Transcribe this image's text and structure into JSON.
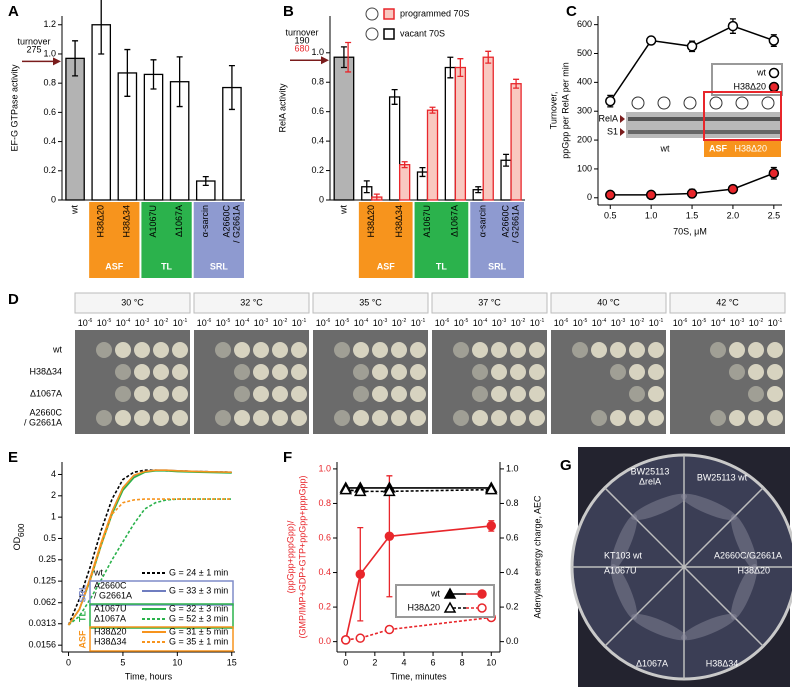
{
  "chart_data": [
    {
      "panel": "A",
      "type": "bar",
      "y_label": "EF-G GTPase activity",
      "ylim": [
        0,
        1.26
      ],
      "yticks": [
        0,
        0.2,
        0.4,
        0.6,
        0.8,
        {
          "value": 1,
          "label": "1.0"
        },
        1.2
      ],
      "turnover_label": "turnover",
      "turnover_values": [
        275
      ],
      "turnover_colors": [
        "#000"
      ],
      "category_groups": [
        {
          "categories": [
            "wt"
          ]
        },
        {
          "name": "ASF",
          "color": "#f7941d",
          "categories": [
            "H38Δ20",
            "H38Δ34"
          ]
        },
        {
          "name": "TL",
          "color": "#2bb24c",
          "categories": [
            "A1067U",
            "Δ1067A"
          ]
        },
        {
          "name": "SRL",
          "color": "#8e9ad0",
          "categories": [
            "α-sarcin",
            [
              "A2660C",
              "/ G2661A"
            ]
          ]
        }
      ],
      "series": [
        {
          "color": "#000",
          "values": [
            0.97,
            1.2,
            0.87,
            0.86,
            0.81,
            0.13,
            0.77
          ],
          "errors": [
            0.12,
            0.2,
            0.16,
            0.1,
            0.17,
            0.03,
            0.15
          ],
          "fills": [
            "#b3b3b3",
            "#fff",
            "#fff",
            "#fff",
            "#fff",
            "#fff",
            "#fff"
          ]
        }
      ]
    },
    {
      "panel": "B",
      "type": "bar",
      "y_label": "RelA activity",
      "ylim": [
        0,
        1.25
      ],
      "yticks": [
        0,
        0.2,
        0.4,
        0.6,
        0.8,
        {
          "value": 1,
          "label": "1.0"
        }
      ],
      "turnover_label": "turnover",
      "turnover_values": [
        190,
        680
      ],
      "turnover_colors": [
        "#000",
        "#e8262b"
      ],
      "category_groups": [
        {
          "categories": [
            "wt"
          ]
        },
        {
          "name": "ASF",
          "color": "#f7941d",
          "categories": [
            "H38Δ20",
            "H38Δ34"
          ]
        },
        {
          "name": "TL",
          "color": "#2bb24c",
          "categories": [
            "A1067U",
            "Δ1067A"
          ]
        },
        {
          "name": "SRL",
          "color": "#8e9ad0",
          "categories": [
            "α-sarcin",
            [
              "A2660C",
              "/ G2661A"
            ]
          ]
        }
      ],
      "series": [
        {
          "name": "vacant 70S",
          "color": "#000",
          "values": [
            0.97,
            0.09,
            0.7,
            0.19,
            0.9,
            0.07,
            0.27
          ],
          "errors": [
            0.07,
            0.04,
            0.05,
            0.03,
            0.07,
            0.02,
            0.04
          ],
          "fills": [
            "#b3b3b3",
            "#fff",
            "#fff",
            "#fff",
            "#fff",
            "#fff",
            "#fff"
          ]
        },
        {
          "name": "programmed 70S",
          "color": "#e8262b",
          "values": [
            0.97,
            0.02,
            0.24,
            0.61,
            0.9,
            0.97,
            0.79
          ],
          "errors": [
            0.1,
            0.02,
            0.02,
            0.02,
            0.06,
            0.04,
            0.03
          ],
          "fills": [
            null,
            "#f9c8c0",
            "#f9c8c0",
            "#f9c8c0",
            "#f9c8c0",
            "#f9c8c0",
            "#f9c8c0"
          ]
        }
      ]
    },
    {
      "panel": "C",
      "type": "scatter",
      "x_label": "70S, μM",
      "y_label": [
        "Turnover,",
        "ppGpp per RelA per min"
      ],
      "xlim": [
        0.35,
        2.6
      ],
      "xticks": [
        0.5,
        {
          "value": 1,
          "label": "1.0"
        },
        1.5,
        {
          "value": 2,
          "label": "2.0"
        },
        2.5
      ],
      "ylim": [
        -25,
        630
      ],
      "yticks": [
        0,
        100,
        200,
        300,
        400,
        500,
        600
      ],
      "x": [
        0.5,
        1,
        1.5,
        2,
        2.5
      ],
      "series": [
        {
          "name": "wt",
          "color": "#000",
          "fill": "#fff",
          "values": [
            335,
            545,
            525,
            595,
            545
          ],
          "errors": [
            20,
            12,
            18,
            25,
            20
          ]
        },
        {
          "name": "H38Δ20",
          "color": "#000",
          "fill": "#e8262b",
          "values": [
            10,
            10,
            15,
            30,
            85
          ],
          "errors": [
            6,
            6,
            14,
            10,
            20
          ]
        }
      ],
      "inset": {
        "row_labels": [
          "RelA",
          "S1"
        ],
        "lane_labels": [
          "wt",
          "ASF",
          "H38Δ20"
        ],
        "highlight_color": "#f7941d",
        "frame_color": "#e8262b"
      }
    },
    {
      "panel": "E",
      "type": "line",
      "log_y": true,
      "x_label": "Time, hours",
      "y_label": "OD",
      "y_label_subscript": "600",
      "xlim": [
        -0.6,
        15.3
      ],
      "xticks": [
        0,
        5,
        10,
        15
      ],
      "ylim": [
        0.0125,
        6
      ],
      "yticks": [
        0.0156,
        0.0313,
        0.062,
        0.125,
        0.25,
        0.5,
        1,
        2,
        4
      ],
      "x": [
        0,
        1,
        2,
        3,
        4,
        5,
        6,
        7,
        8,
        9,
        10,
        12,
        15
      ],
      "groups": [
        {
          "series": [
            {
              "name": "wt",
              "doubling": "G = 24 ± 1 min",
              "color": "#000",
              "dash": "3,2",
              "values": [
                0.03,
                0.07,
                0.2,
                0.65,
                1.8,
                3.4,
                4.3,
                4.6,
                4.6,
                4.5,
                4.5,
                4.4,
                4.3
              ]
            }
          ]
        },
        {
          "name": "SRL",
          "color": "#7f8cc8",
          "series": [
            {
              "name": [
                "A2660C",
                "/ G2661A"
              ],
              "doubling": "G = 33 ± 3 min",
              "color": "#6f7dc0",
              "values": [
                0.03,
                0.05,
                0.14,
                0.42,
                1.2,
                2.6,
                3.8,
                4.4,
                4.6,
                4.6,
                4.5,
                4.4,
                4.3
              ]
            }
          ]
        },
        {
          "name": "TL",
          "color": "#2bb24c",
          "series": [
            {
              "name": "A1067U",
              "doubling": "G = 32 ± 3 min",
              "color": "#2bb24c",
              "values": [
                0.03,
                0.05,
                0.13,
                0.4,
                1.1,
                2.4,
                3.6,
                4.3,
                4.5,
                4.5,
                4.4,
                4.3,
                4.2
              ]
            },
            {
              "name": "Δ1067A",
              "doubling": "G = 52 ± 3 min",
              "color": "#2bb24c",
              "dash": "3,2",
              "values": [
                0.03,
                0.04,
                0.07,
                0.13,
                0.25,
                0.45,
                0.8,
                1.3,
                1.6,
                1.75,
                1.8,
                1.8,
                1.8
              ]
            }
          ]
        },
        {
          "name": "ASF",
          "color": "#f7941d",
          "series": [
            {
              "name": "H38Δ20",
              "doubling": "G = 31 ± 5 min",
              "color": "#f7941d",
              "values": [
                0.03,
                0.05,
                0.14,
                0.44,
                1.2,
                2.6,
                3.9,
                4.4,
                4.6,
                4.6,
                4.5,
                4.4,
                4.3
              ]
            },
            {
              "name": "H38Δ34",
              "doubling": "G = 35 ± 1 min",
              "color": "#f7941d",
              "dash": "3,2",
              "values": [
                0.03,
                0.05,
                0.13,
                0.4,
                1.1,
                1.6,
                1.75,
                1.8,
                1.8,
                1.8,
                1.8,
                1.8,
                1.8
              ]
            }
          ]
        }
      ]
    },
    {
      "panel": "F",
      "type": "line",
      "x_label": "Time, minutes",
      "y_label": [
        "(ppGpp+pppGpp)/",
        "(GMP/IMP+GDP+GTP+ppGpp+pppGpp)"
      ],
      "y_label_color": "#e8262b",
      "y2_label": "Adenylate energy charge, AEC",
      "xlim": [
        -0.6,
        10.6
      ],
      "xticks": [
        0,
        2,
        4,
        6,
        8,
        10
      ],
      "ylim": [
        -0.06,
        1.04
      ],
      "yticks": [
        {
          "value": 0,
          "label": "0.0"
        },
        0.2,
        0.4,
        0.6,
        0.8,
        {
          "value": 1,
          "label": "1.0"
        }
      ],
      "y2lim": [
        -0.06,
        1.04
      ],
      "y2ticks": [
        {
          "value": 0,
          "label": "0.0"
        },
        0.2,
        0.4,
        0.6,
        0.8,
        {
          "value": 1,
          "label": "1.0"
        }
      ],
      "x": [
        0,
        1,
        3,
        10
      ],
      "series": [
        {
          "name": "wt",
          "color": "#e8262b",
          "filled": true,
          "values": [
            0.01,
            0.39,
            0.61,
            0.67
          ],
          "errors": [
            0.01,
            0.27,
            0.35,
            0.03
          ],
          "aec_color": "#000",
          "aec_values": [
            0.89,
            0.89,
            0.89,
            0.89
          ]
        },
        {
          "name": "H38Δ20",
          "color": "#e8262b",
          "filled": false,
          "dash": "3,2",
          "values": [
            0.01,
            0.02,
            0.07,
            0.14
          ],
          "aec_color": "#000",
          "aec_values": [
            0.88,
            0.87,
            0.87,
            0.88
          ]
        }
      ]
    }
  ],
  "plates": {
    "panel": "D",
    "temperatures": [
      "30 °C",
      "32 °C",
      "35 °C",
      "37 °C",
      "40 °C",
      "42 °C"
    ],
    "dilution_base": "10",
    "dilution_exponents": [
      "-6",
      "-5",
      "-4",
      "-3",
      "-2",
      "-1"
    ],
    "rows": [
      "wt",
      "H38Δ34",
      "Δ1067A",
      [
        "A2660C",
        "/ G2661A"
      ]
    ]
  },
  "plate_photo": {
    "panel": "G",
    "labels": [
      [
        "BW25113",
        "ΔrelA"
      ],
      "BW25113 wt",
      "KT103 wt",
      "A1067U",
      "A2660C/G2661A",
      "H38Δ20",
      "Δ1067A",
      "H38Δ34"
    ]
  }
}
